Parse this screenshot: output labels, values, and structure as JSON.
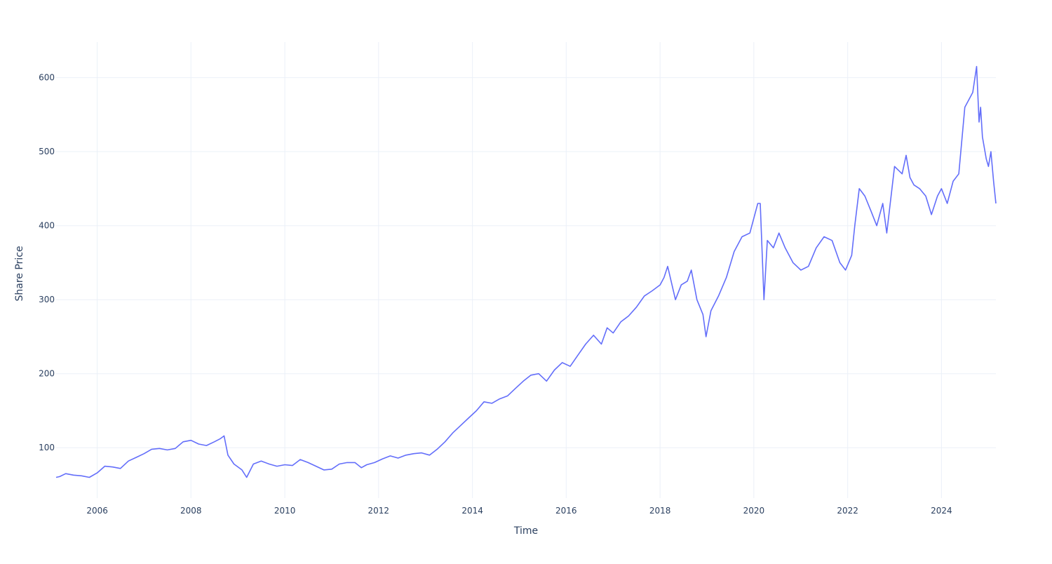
{
  "chart_data": {
    "type": "line",
    "title": "",
    "xlabel": "Time",
    "ylabel": "Share Price",
    "xlim": [
      "2005-02-15",
      "2025-02-28"
    ],
    "ylim": [
      32,
      648
    ],
    "x_ticks": [
      "2006",
      "2008",
      "2010",
      "2012",
      "2014",
      "2016",
      "2018",
      "2020",
      "2022",
      "2024"
    ],
    "y_ticks": [
      100,
      200,
      300,
      400,
      500,
      600
    ],
    "grid": true,
    "legend": "none",
    "line_color": "#636efa",
    "series": [
      {
        "x": [
          "2005-02-15",
          "2005-03-15",
          "2005-05-01",
          "2005-07-01",
          "2005-09-01",
          "2005-11-01",
          "2006-01-01",
          "2006-03-01",
          "2006-05-01",
          "2006-07-01",
          "2006-09-01",
          "2006-11-01",
          "2007-01-01",
          "2007-03-01",
          "2007-05-01",
          "2007-07-01",
          "2007-09-01",
          "2007-11-01",
          "2008-01-01",
          "2008-03-01",
          "2008-05-01",
          "2008-07-01",
          "2008-08-15",
          "2008-09-15",
          "2008-10-15",
          "2008-12-01",
          "2009-02-01",
          "2009-03-10",
          "2009-05-01",
          "2009-07-01",
          "2009-09-01",
          "2009-11-01",
          "2010-01-01",
          "2010-03-01",
          "2010-05-01",
          "2010-07-01",
          "2010-09-01",
          "2010-11-01",
          "2011-01-01",
          "2011-03-01",
          "2011-05-01",
          "2011-07-01",
          "2011-08-20",
          "2011-10-01",
          "2011-12-01",
          "2012-02-01",
          "2012-04-01",
          "2012-06-01",
          "2012-08-01",
          "2012-10-01",
          "2012-12-01",
          "2013-02-01",
          "2013-04-01",
          "2013-06-01",
          "2013-08-01",
          "2013-10-01",
          "2013-12-01",
          "2014-02-01",
          "2014-04-01",
          "2014-06-01",
          "2014-08-01",
          "2014-10-01",
          "2014-12-01",
          "2015-02-01",
          "2015-04-01",
          "2015-06-01",
          "2015-08-01",
          "2015-10-01",
          "2015-12-01",
          "2016-02-01",
          "2016-04-01",
          "2016-06-01",
          "2016-08-01",
          "2016-10-01",
          "2016-11-15",
          "2017-01-01",
          "2017-03-01",
          "2017-05-01",
          "2017-07-01",
          "2017-09-01",
          "2017-11-01",
          "2018-01-01",
          "2018-02-01",
          "2018-03-01",
          "2018-05-01",
          "2018-06-15",
          "2018-08-01",
          "2018-09-01",
          "2018-10-15",
          "2018-12-01",
          "2018-12-25",
          "2019-02-01",
          "2019-04-01",
          "2019-06-01",
          "2019-08-01",
          "2019-10-01",
          "2019-12-01",
          "2020-02-01",
          "2020-02-20",
          "2020-03-20",
          "2020-04-15",
          "2020-06-01",
          "2020-07-15",
          "2020-09-01",
          "2020-11-01",
          "2021-01-01",
          "2021-03-01",
          "2021-05-01",
          "2021-07-01",
          "2021-09-01",
          "2021-11-01",
          "2021-12-15",
          "2022-02-01",
          "2022-02-25",
          "2022-04-01",
          "2022-05-15",
          "2022-07-01",
          "2022-08-15",
          "2022-10-01",
          "2022-11-01",
          "2023-01-01",
          "2023-03-01",
          "2023-04-01",
          "2023-05-01",
          "2023-06-01",
          "2023-07-15",
          "2023-09-01",
          "2023-10-15",
          "2023-12-01",
          "2024-01-01",
          "2024-02-15",
          "2024-04-01",
          "2024-05-15",
          "2024-07-01",
          "2024-08-01",
          "2024-09-01",
          "2024-10-01",
          "2024-10-20",
          "2024-11-01",
          "2024-11-15",
          "2024-12-15",
          "2025-01-01",
          "2025-01-20",
          "2025-02-10",
          "2025-02-28"
        ],
        "values": [
          60,
          61,
          65,
          63,
          62,
          60,
          66,
          75,
          74,
          72,
          82,
          87,
          92,
          98,
          99,
          97,
          99,
          108,
          110,
          105,
          103,
          108,
          112,
          116,
          90,
          78,
          70,
          60,
          78,
          82,
          78,
          75,
          77,
          76,
          84,
          80,
          75,
          70,
          71,
          78,
          80,
          80,
          73,
          77,
          80,
          85,
          89,
          86,
          90,
          92,
          93,
          90,
          98,
          108,
          120,
          130,
          140,
          150,
          162,
          160,
          166,
          170,
          180,
          190,
          198,
          200,
          190,
          205,
          215,
          210,
          225,
          240,
          252,
          240,
          262,
          255,
          270,
          278,
          290,
          305,
          312,
          320,
          330,
          345,
          300,
          320,
          325,
          340,
          300,
          280,
          250,
          285,
          305,
          330,
          365,
          385,
          390,
          430,
          430,
          300,
          380,
          370,
          390,
          370,
          350,
          340,
          345,
          370,
          385,
          380,
          350,
          340,
          360,
          400,
          450,
          440,
          420,
          400,
          430,
          390,
          480,
          470,
          495,
          465,
          455,
          450,
          440,
          415,
          440,
          450,
          430,
          460,
          470,
          560,
          570,
          580,
          615,
          540,
          560,
          520,
          490,
          480,
          500,
          460,
          430
        ]
      }
    ]
  }
}
